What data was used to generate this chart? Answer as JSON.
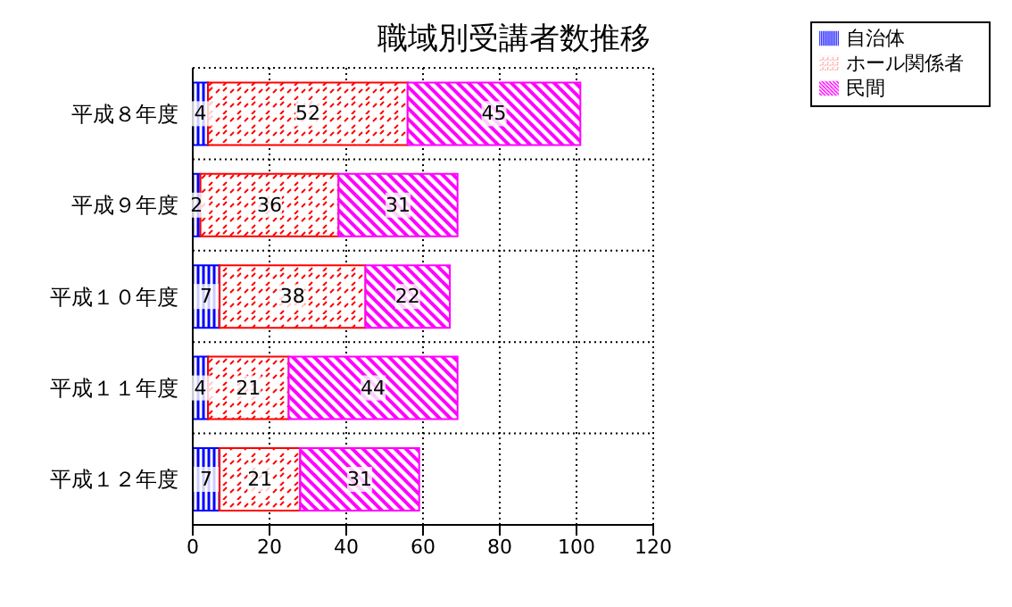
{
  "chart_data": {
    "type": "bar",
    "orientation": "horizontal",
    "stacked": true,
    "title": "職域別受講者数推移",
    "categories": [
      "平成８年度",
      "平成９年度",
      "平成１０年度",
      "平成１１年度",
      "平成１２年度"
    ],
    "series": [
      {
        "name": "自治体",
        "color": "#0000ff",
        "values": [
          4,
          2,
          7,
          4,
          7
        ]
      },
      {
        "name": "ホール関係者",
        "color": "#ff0000",
        "values": [
          52,
          36,
          38,
          21,
          21
        ]
      },
      {
        "name": "民間",
        "color": "#ff00ff",
        "values": [
          45,
          31,
          22,
          44,
          31
        ]
      }
    ],
    "xlim": [
      0,
      120
    ],
    "xticks": [
      0,
      20,
      40,
      60,
      80,
      100,
      120
    ],
    "grid": true,
    "legend": "top right",
    "data_labels": true
  }
}
